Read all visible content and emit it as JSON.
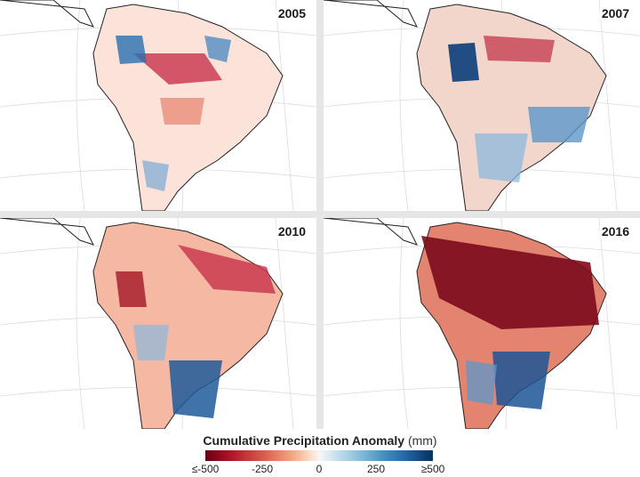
{
  "panels": [
    {
      "year": "2005"
    },
    {
      "year": "2007"
    },
    {
      "year": "2010"
    },
    {
      "year": "2016"
    }
  ],
  "legend": {
    "title": "Cumulative Precipitation Anomaly",
    "unit": "(mm)",
    "ticks": [
      "≤-500",
      "-250",
      "0",
      "250",
      "≥500"
    ],
    "scale_min": -500,
    "scale_max": 500,
    "colors": {
      "dry_extreme": "#67000d",
      "dry": "#d6604d",
      "neutral": "#f7f7f7",
      "wet": "#4393c3",
      "wet_extreme": "#053061"
    }
  }
}
